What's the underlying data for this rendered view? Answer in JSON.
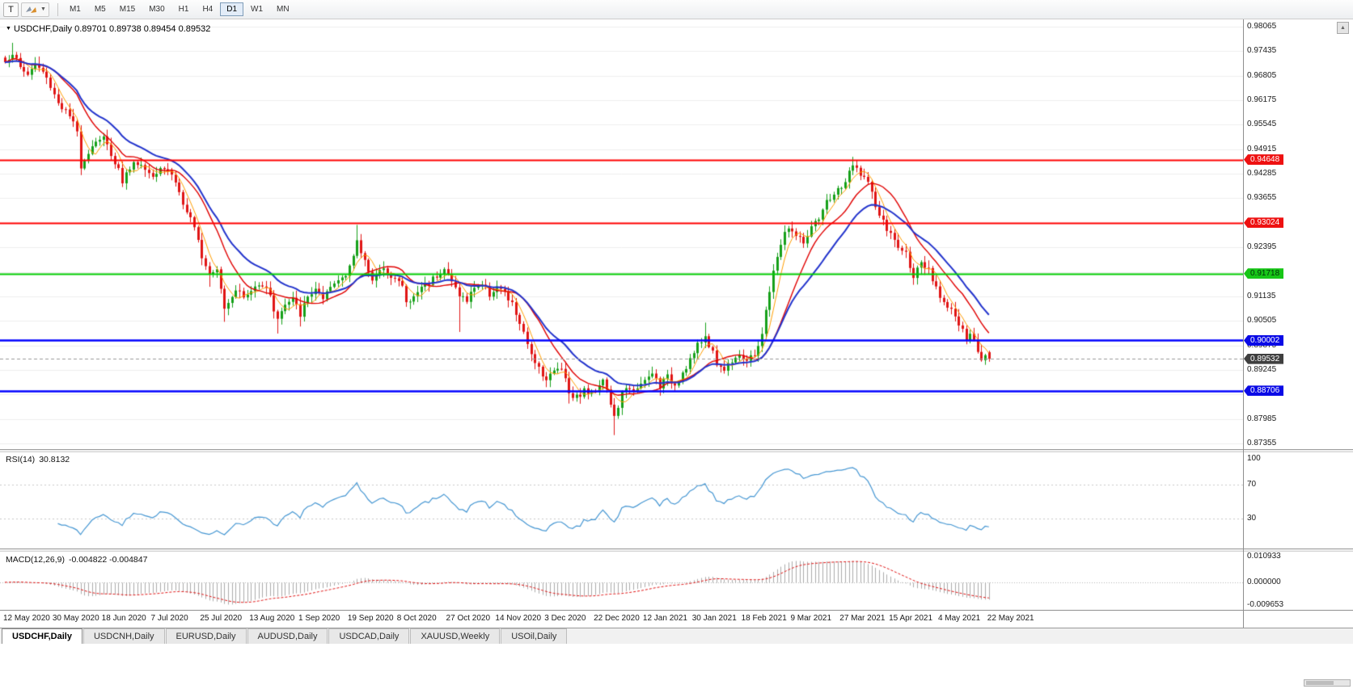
{
  "toolbar": {
    "t_button_label": "T",
    "timeframes": [
      "M1",
      "M5",
      "M15",
      "M30",
      "H1",
      "H4",
      "D1",
      "W1",
      "MN"
    ],
    "active_timeframe": "D1"
  },
  "icons": {
    "window_menu": "▼",
    "dropdown_caret": "▼",
    "scroll_up": "▲"
  },
  "chart": {
    "symbol_period": "USDCHF,Daily",
    "ohlc": "0.89701 0.89738 0.89454 0.89532"
  },
  "panels": {
    "rsi": {
      "name": "RSI(14)",
      "value": "30.8132",
      "axis_labels": [
        {
          "text": "100",
          "v": 100
        },
        {
          "text": "70",
          "v": 70
        },
        {
          "text": "30",
          "v": 30
        }
      ]
    },
    "macd": {
      "name": "MACD(12,26,9)",
      "value": "-0.004822 -0.004847",
      "axis_labels": [
        {
          "text": "0.010933",
          "v": 0.010933
        },
        {
          "text": "0.000000",
          "v": 0
        },
        {
          "text": "-0.009653",
          "v": -0.009653
        }
      ]
    }
  },
  "y_axis": {
    "ticks": [
      {
        "text": "0.98065",
        "price": 0.98065
      },
      {
        "text": "0.97435",
        "price": 0.97435
      },
      {
        "text": "0.96805",
        "price": 0.96805
      },
      {
        "text": "0.96175",
        "price": 0.96175
      },
      {
        "text": "0.95545",
        "price": 0.95545
      },
      {
        "text": "0.94915",
        "price": 0.94915
      },
      {
        "text": "0.94285",
        "price": 0.94285
      },
      {
        "text": "0.93655",
        "price": 0.93655
      },
      {
        "text": "0.92395",
        "price": 0.92395
      },
      {
        "text": "0.91135",
        "price": 0.91135
      },
      {
        "text": "0.90505",
        "price": 0.90505
      },
      {
        "text": "0.89875",
        "price": 0.89875
      },
      {
        "text": "0.89245",
        "price": 0.89245
      },
      {
        "text": "0.88615",
        "price": 0.88615
      },
      {
        "text": "0.87985",
        "price": 0.87985
      },
      {
        "text": "0.87355",
        "price": 0.87355
      }
    ],
    "badges": [
      {
        "text": "0.94648",
        "price": 0.94648,
        "bg": "#ee1111",
        "fg": "#ffffff"
      },
      {
        "text": "0.93024",
        "price": 0.93024,
        "bg": "#ee1111",
        "fg": "#ffffff"
      },
      {
        "text": "0.91718",
        "price": 0.91718,
        "bg": "#17c617",
        "fg": "#00300a"
      },
      {
        "text": "0.90002",
        "price": 0.90002,
        "bg": "#0a0ae6",
        "fg": "#ffffff"
      },
      {
        "text": "0.89532",
        "price": 0.89532,
        "bg": "#3f3f3f",
        "fg": "#ffffff"
      },
      {
        "text": "0.88706",
        "price": 0.88706,
        "bg": "#0a0ae6",
        "fg": "#ffffff"
      }
    ]
  },
  "x_axis": {
    "labels": [
      {
        "text": "12 May 2020",
        "i": 0
      },
      {
        "text": "30 May 2020",
        "i": 13
      },
      {
        "text": "18 Jun 2020",
        "i": 26
      },
      {
        "text": "7 Jul 2020",
        "i": 39
      },
      {
        "text": "25 Jul 2020",
        "i": 52
      },
      {
        "text": "13 Aug 2020",
        "i": 65
      },
      {
        "text": "1 Sep 2020",
        "i": 78
      },
      {
        "text": "19 Sep 2020",
        "i": 91
      },
      {
        "text": "8 Oct 2020",
        "i": 104
      },
      {
        "text": "27 Oct 2020",
        "i": 117
      },
      {
        "text": "14 Nov 2020",
        "i": 130
      },
      {
        "text": "3 Dec 2020",
        "i": 143
      },
      {
        "text": "22 Dec 2020",
        "i": 156
      },
      {
        "text": "12 Jan 2021",
        "i": 169
      },
      {
        "text": "30 Jan 2021",
        "i": 182
      },
      {
        "text": "18 Feb 2021",
        "i": 195
      },
      {
        "text": "9 Mar 2021",
        "i": 208
      },
      {
        "text": "27 Mar 2021",
        "i": 221
      },
      {
        "text": "15 Apr 2021",
        "i": 234
      },
      {
        "text": "4 May 2021",
        "i": 247
      },
      {
        "text": "22 May 2021",
        "i": 260
      }
    ]
  },
  "tabs": [
    {
      "label": "USDCHF,Daily",
      "active": true
    },
    {
      "label": "USDCNH,Daily",
      "active": false
    },
    {
      "label": "EURUSD,Daily",
      "active": false
    },
    {
      "label": "AUDUSD,Daily",
      "active": false
    },
    {
      "label": "USDCAD,Daily",
      "active": false
    },
    {
      "label": "XAUUSD,Weekly",
      "active": false
    },
    {
      "label": "USOil,Daily",
      "active": false
    }
  ],
  "colors": {
    "up": "#16a019",
    "down": "#e01414",
    "ma_fast": "#ff9d00",
    "ma_mid": "#e00000",
    "ma_slow": "#2233cc",
    "rsi": "#4596d2",
    "macd_hist": "#ababab",
    "macd_signal": "#e01414",
    "grid": "#ededed",
    "current_line": "#9a9a9a"
  },
  "chart_data": {
    "type": "candlestick",
    "symbol": "USDCHF",
    "timeframe": "Daily",
    "count": 261,
    "y_range": [
      0.87355,
      0.98065
    ],
    "y_grid_step": 0.0063,
    "last_ohlc": [
      0.89701,
      0.89738,
      0.89454,
      0.89532
    ],
    "levels": [
      {
        "price": 0.94648,
        "color": "#ff0000",
        "width": 2
      },
      {
        "price": 0.93024,
        "color": "#ff0000",
        "width": 2
      },
      {
        "price": 0.91718,
        "color": "#00cc00",
        "width": 2
      },
      {
        "price": 0.90002,
        "color": "#0000ff",
        "width": 2.5
      },
      {
        "price": 0.88706,
        "color": "#0000ff",
        "width": 2.5
      }
    ],
    "moving_averages": [
      {
        "period": 5,
        "type": "sma"
      },
      {
        "period": 13,
        "type": "sma"
      },
      {
        "period": 21,
        "type": "ema"
      }
    ],
    "rsi": {
      "period": 14,
      "current": 30.8132,
      "levels": [
        70,
        30
      ]
    },
    "macd": {
      "fast": 12,
      "slow": 26,
      "signal": 9,
      "current": -0.004822,
      "signal_current": -0.004847,
      "range": [
        -0.009653,
        0.010933
      ]
    },
    "price_anchors": [
      [
        0,
        0.9715
      ],
      [
        2,
        0.974
      ],
      [
        4,
        0.97
      ],
      [
        6,
        0.9685
      ],
      [
        8,
        0.971
      ],
      [
        10,
        0.969
      ],
      [
        12,
        0.9655
      ],
      [
        14,
        0.9612
      ],
      [
        16,
        0.9588
      ],
      [
        17,
        0.9575
      ],
      [
        19,
        0.9535
      ],
      [
        20,
        0.945
      ],
      [
        22,
        0.9485
      ],
      [
        24,
        0.9515
      ],
      [
        26,
        0.952
      ],
      [
        28,
        0.948
      ],
      [
        30,
        0.944
      ],
      [
        31,
        0.941
      ],
      [
        33,
        0.9445
      ],
      [
        35,
        0.946
      ],
      [
        37,
        0.944
      ],
      [
        39,
        0.9425
      ],
      [
        41,
        0.945
      ],
      [
        43,
        0.944
      ],
      [
        45,
        0.941
      ],
      [
        47,
        0.935
      ],
      [
        49,
        0.931
      ],
      [
        51,
        0.9255
      ],
      [
        52,
        0.922
      ],
      [
        54,
        0.9175
      ],
      [
        56,
        0.919
      ],
      [
        58,
        0.9085
      ],
      [
        61,
        0.9135
      ],
      [
        63,
        0.911
      ],
      [
        65,
        0.9125
      ],
      [
        67,
        0.915
      ],
      [
        69,
        0.914
      ],
      [
        71,
        0.908
      ],
      [
        72,
        0.906
      ],
      [
        74,
        0.909
      ],
      [
        76,
        0.9105
      ],
      [
        78,
        0.9068
      ],
      [
        80,
        0.911
      ],
      [
        82,
        0.9135
      ],
      [
        84,
        0.91
      ],
      [
        86,
        0.9135
      ],
      [
        88,
        0.9155
      ],
      [
        90,
        0.9175
      ],
      [
        92,
        0.9215
      ],
      [
        93,
        0.925
      ],
      [
        95,
        0.9205
      ],
      [
        97,
        0.916
      ],
      [
        99,
        0.9175
      ],
      [
        101,
        0.918
      ],
      [
        103,
        0.916
      ],
      [
        105,
        0.914
      ],
      [
        106,
        0.9095
      ],
      [
        108,
        0.911
      ],
      [
        110,
        0.914
      ],
      [
        112,
        0.915
      ],
      [
        114,
        0.917
      ],
      [
        116,
        0.9185
      ],
      [
        118,
        0.915
      ],
      [
        120,
        0.912
      ],
      [
        122,
        0.91
      ],
      [
        124,
        0.914
      ],
      [
        126,
        0.9145
      ],
      [
        128,
        0.912
      ],
      [
        130,
        0.914
      ],
      [
        132,
        0.9118
      ],
      [
        134,
        0.9092
      ],
      [
        136,
        0.9045
      ],
      [
        138,
        0.8985
      ],
      [
        140,
        0.895
      ],
      [
        142,
        0.8915
      ],
      [
        143,
        0.8902
      ],
      [
        145,
        0.892
      ],
      [
        147,
        0.8935
      ],
      [
        149,
        0.8868
      ],
      [
        151,
        0.8855
      ],
      [
        153,
        0.8872
      ],
      [
        155,
        0.8862
      ],
      [
        156,
        0.8875
      ],
      [
        158,
        0.8905
      ],
      [
        160,
        0.8838
      ],
      [
        161,
        0.88
      ],
      [
        163,
        0.8862
      ],
      [
        165,
        0.888
      ],
      [
        167,
        0.8872
      ],
      [
        169,
        0.8895
      ],
      [
        171,
        0.8915
      ],
      [
        173,
        0.8885
      ],
      [
        175,
        0.8905
      ],
      [
        177,
        0.8888
      ],
      [
        179,
        0.8918
      ],
      [
        181,
        0.8952
      ],
      [
        183,
        0.8985
      ],
      [
        185,
        0.901
      ],
      [
        186,
        0.8992
      ],
      [
        188,
        0.8942
      ],
      [
        190,
        0.8925
      ],
      [
        192,
        0.8952
      ],
      [
        194,
        0.8968
      ],
      [
        196,
        0.8945
      ],
      [
        198,
        0.8962
      ],
      [
        200,
        0.902
      ],
      [
        202,
        0.9125
      ],
      [
        204,
        0.922
      ],
      [
        206,
        0.9275
      ],
      [
        207,
        0.9292
      ],
      [
        209,
        0.9268
      ],
      [
        211,
        0.9252
      ],
      [
        213,
        0.9288
      ],
      [
        215,
        0.9308
      ],
      [
        217,
        0.9355
      ],
      [
        219,
        0.9378
      ],
      [
        221,
        0.9392
      ],
      [
        223,
        0.9428
      ],
      [
        224,
        0.9448
      ],
      [
        226,
        0.9432
      ],
      [
        228,
        0.9405
      ],
      [
        230,
        0.9345
      ],
      [
        232,
        0.9302
      ],
      [
        234,
        0.9272
      ],
      [
        236,
        0.924
      ],
      [
        238,
        0.9222
      ],
      [
        240,
        0.9168
      ],
      [
        242,
        0.9192
      ],
      [
        244,
        0.9178
      ],
      [
        246,
        0.913
      ],
      [
        248,
        0.9102
      ],
      [
        250,
        0.9082
      ],
      [
        252,
        0.904
      ],
      [
        254,
        0.9002
      ],
      [
        255,
        0.9012
      ],
      [
        256,
        0.8998
      ],
      [
        257,
        0.8975
      ],
      [
        258,
        0.8952
      ],
      [
        259,
        0.897
      ],
      [
        260,
        0.89532
      ]
    ],
    "wick_overrides": {
      "2": {
        "h": 0.9765
      },
      "20": {
        "l": 0.9425
      },
      "54": {
        "l": 0.9138
      },
      "58": {
        "l": 0.9048
      },
      "72": {
        "l": 0.9018
      },
      "78": {
        "l": 0.9036
      },
      "93": {
        "h": 0.9297
      },
      "120": {
        "l": 0.9022
      },
      "149": {
        "l": 0.8838
      },
      "161": {
        "l": 0.8757
      },
      "185": {
        "h": 0.9046
      },
      "224": {
        "h": 0.9472
      }
    }
  }
}
